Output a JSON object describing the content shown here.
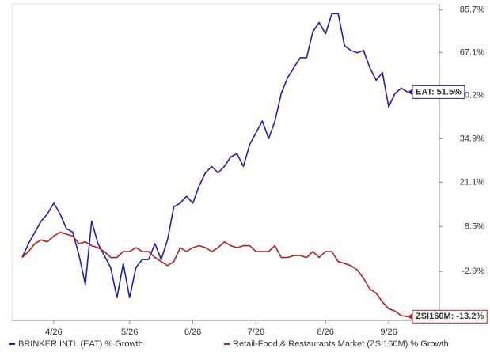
{
  "chart_data": {
    "type": "line",
    "log_scale": true,
    "categories": [
      null,
      null,
      null,
      null,
      null,
      "4/26",
      null,
      null,
      null,
      null,
      null,
      null,
      null,
      null,
      null,
      null,
      null,
      "5/26",
      null,
      null,
      null,
      null,
      null,
      null,
      null,
      null,
      null,
      "6/26",
      null,
      null,
      null,
      null,
      null,
      null,
      null,
      null,
      null,
      "7/26",
      null,
      null,
      null,
      null,
      null,
      null,
      null,
      null,
      null,
      null,
      "8/26",
      null,
      null,
      null,
      null,
      null,
      null,
      null,
      null,
      null,
      "9/26",
      null,
      null,
      null
    ],
    "series": [
      {
        "name": "BRINKER INTL (EAT) % Growth",
        "color": "#1f1fb0",
        "values": [
          0.5,
          4,
          7,
          10,
          12,
          15,
          12,
          8,
          7,
          1,
          -6,
          10,
          4,
          1,
          -2,
          -9,
          -1,
          -9,
          -2,
          0,
          0,
          4,
          0,
          5,
          14,
          15,
          17,
          15,
          20,
          24,
          26,
          24,
          26,
          29,
          30,
          26,
          33,
          37,
          41,
          35,
          41,
          51,
          57,
          61,
          65,
          65,
          76,
          80,
          75,
          84,
          84,
          70,
          68,
          67,
          68,
          61,
          56,
          59,
          46,
          51,
          53,
          51.5
        ],
        "end_label": "EAT: 51.5%"
      },
      {
        "name": "Retail-Food & Restaurants Market (ZSI160M) % Growth",
        "color": "#b02020",
        "values": [
          0.5,
          2,
          4,
          5,
          4.5,
          6,
          7,
          6.5,
          6,
          4,
          4.5,
          3.5,
          3,
          2,
          0.5,
          0.5,
          2,
          2,
          3,
          2,
          2,
          0.5,
          -0.5,
          -1.5,
          -0.5,
          3,
          2,
          3,
          3.5,
          3,
          2,
          3,
          4.5,
          3.5,
          3,
          3.5,
          3.5,
          2,
          2,
          2,
          3.5,
          0.5,
          0.5,
          1,
          1,
          0.5,
          2,
          0.5,
          2,
          2,
          -0.5,
          -1,
          -1.5,
          -2.5,
          -4.5,
          -7,
          -8,
          -10,
          -11.5,
          -12,
          -13,
          -13.2
        ],
        "end_label": "ZSI160M: -13.2%"
      }
    ],
    "ylim": [
      -14,
      88.5
    ],
    "yticks": [
      {
        "value": 85.7,
        "label": "85.7%"
      },
      {
        "value": 67.1,
        "label": "67.1%"
      },
      {
        "value": 50.2,
        "label": "50.2%"
      },
      {
        "value": 34.9,
        "label": "34.9%"
      },
      {
        "value": 21.1,
        "label": "21.1%"
      },
      {
        "value": 8.5,
        "label": "8.5%"
      },
      {
        "value": -2.9,
        "label": "-2.9%"
      }
    ],
    "grid": false
  }
}
